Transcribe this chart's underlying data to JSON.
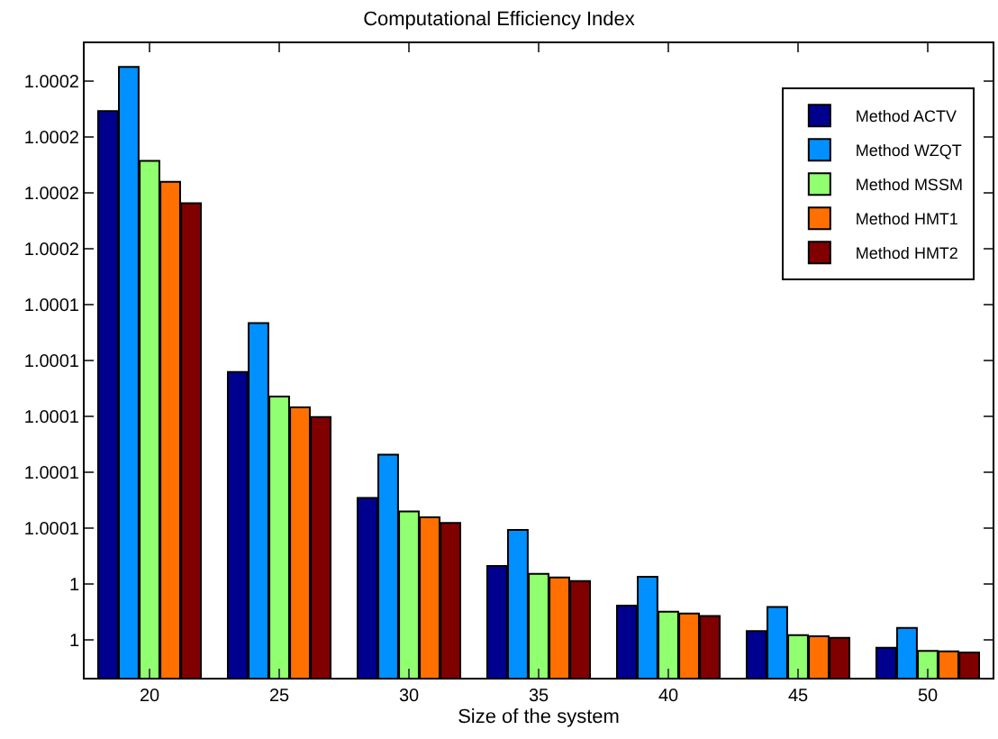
{
  "chart_data": {
    "type": "bar",
    "title": "Computational Efficiency Index",
    "xlabel": "Size of the system",
    "categories": [
      "20",
      "25",
      "30",
      "35",
      "40",
      "45",
      "50"
    ],
    "series": [
      {
        "name": "Method ACTV",
        "color": "#00008f",
        "values": [
          1.0002012,
          1.0001079,
          1.0000628,
          1.0000385,
          1.0000243,
          1.0000152,
          1.0000092
        ]
      },
      {
        "name": "Method WZQT",
        "color": "#0090ff",
        "values": [
          1.000217,
          1.0001254,
          1.0000783,
          1.0000514,
          1.0000346,
          1.0000238,
          1.0000163
        ]
      },
      {
        "name": "Method MSSM",
        "color": "#90ff70",
        "values": [
          1.0001834,
          1.0000991,
          1.000058,
          1.0000357,
          1.0000221,
          1.0000137,
          1.0000081
        ]
      },
      {
        "name": "Method HMT1",
        "color": "#ff7000",
        "values": [
          1.0001759,
          1.0000952,
          1.0000559,
          1.0000344,
          1.0000215,
          1.0000133,
          1.0000079
        ]
      },
      {
        "name": "Method HMT2",
        "color": "#800000",
        "values": [
          1.0001683,
          1.0000918,
          1.0000539,
          1.0000331,
          1.0000206,
          1.0000128,
          1.0000075
        ]
      }
    ],
    "ylim": [
      0.9999985,
      1.0002255
    ],
    "yticks": [
      {
        "value": 1.000012,
        "label": "1"
      },
      {
        "value": 1.000032,
        "label": "1"
      },
      {
        "value": 1.000052,
        "label": "1.0001"
      },
      {
        "value": 1.000072,
        "label": "1.0001"
      },
      {
        "value": 1.000092,
        "label": "1.0001"
      },
      {
        "value": 1.000112,
        "label": "1.0001"
      },
      {
        "value": 1.000132,
        "label": "1.0001"
      },
      {
        "value": 1.000152,
        "label": "1.0002"
      },
      {
        "value": 1.000172,
        "label": "1.0002"
      },
      {
        "value": 1.000192,
        "label": "1.0002"
      },
      {
        "value": 1.000212,
        "label": "1.0002"
      }
    ],
    "legend": "top right",
    "grid": false
  }
}
